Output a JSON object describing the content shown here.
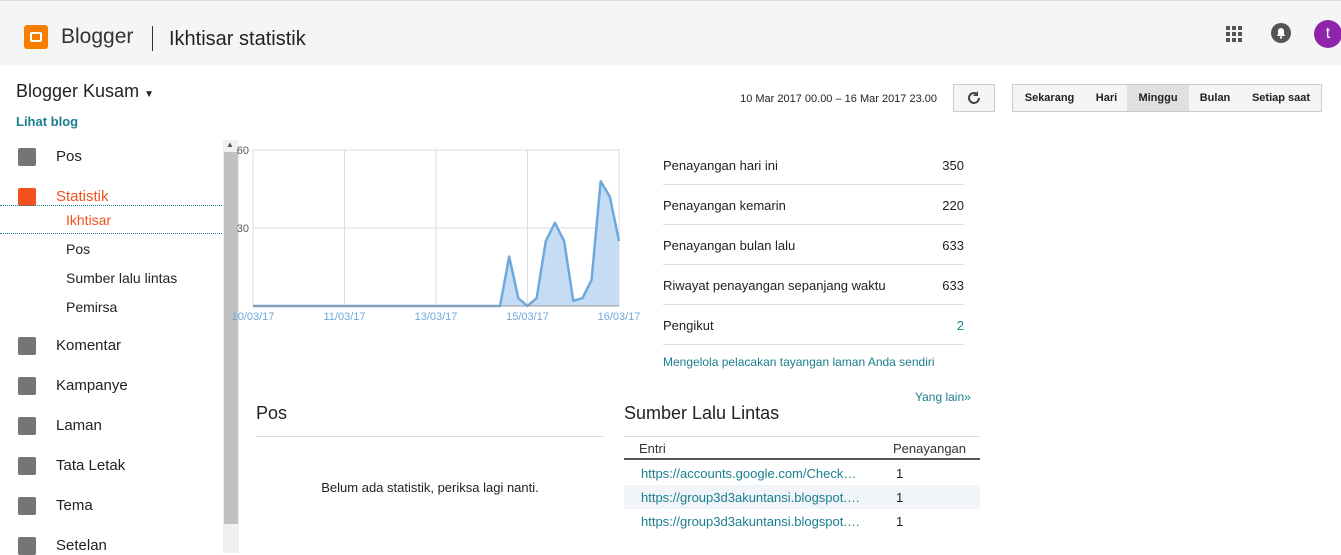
{
  "header": {
    "brand": "Blogger",
    "title": "Ikhtisar statistik",
    "avatar": "t"
  },
  "sidebar": {
    "blog_name": "Blogger Kusam",
    "view_blog": "Lihat blog",
    "nav": [
      {
        "label": "Pos"
      },
      {
        "label": "Statistik",
        "active": true,
        "sub": [
          "Ikhtisar",
          "Pos",
          "Sumber lalu lintas",
          "Pemirsa"
        ],
        "active_sub": 0
      },
      {
        "label": "Komentar"
      },
      {
        "label": "Kampanye"
      },
      {
        "label": "Laman"
      },
      {
        "label": "Tata Letak"
      },
      {
        "label": "Tema"
      },
      {
        "label": "Setelan"
      }
    ]
  },
  "toolbar": {
    "date_range": "10 Mar 2017 00.00 – 16 Mar 2017 23.00",
    "ranges": [
      "Sekarang",
      "Hari",
      "Minggu",
      "Bulan",
      "Setiap saat"
    ],
    "active": 2
  },
  "chart_data": {
    "type": "area",
    "x": [
      "10/03/17",
      null,
      null,
      null,
      null,
      null,
      null,
      null,
      null,
      null,
      "11/03/17",
      null,
      null,
      null,
      null,
      null,
      null,
      null,
      null,
      null,
      "13/03/17",
      null,
      null,
      null,
      null,
      null,
      null,
      null,
      null,
      null,
      "15/03/17",
      null,
      null,
      null,
      null,
      null,
      null,
      null,
      null,
      null,
      "16/03/17"
    ],
    "series": [
      {
        "color": "#6fa8dc",
        "fill": "#c6dcf5",
        "values": [
          0,
          0,
          0,
          0,
          0,
          0,
          0,
          0,
          0,
          0,
          0,
          0,
          0,
          0,
          0,
          0,
          0,
          0,
          0,
          0,
          0,
          0,
          0,
          0,
          0,
          0,
          0,
          0,
          19,
          3,
          0,
          3,
          25,
          32,
          25,
          2,
          3,
          10,
          48,
          42,
          25
        ]
      }
    ],
    "ylim": [
      0,
      60
    ],
    "yticks": [
      30,
      60
    ],
    "grid": true
  },
  "stats": {
    "rows": [
      {
        "label": "Penayangan hari ini",
        "value": 350
      },
      {
        "label": "Penayangan kemarin",
        "value": 220
      },
      {
        "label": "Penayangan bulan lalu",
        "value": 633
      },
      {
        "label": "Riwayat penayangan sepanjang waktu",
        "value": 633
      },
      {
        "label": "Pengikut",
        "value": 2,
        "link": true
      }
    ],
    "link": "Mengelola pelacakan tayangan laman Anda sendiri"
  },
  "posts": {
    "title": "Pos",
    "empty": "Belum ada statistik, periksa lagi nanti."
  },
  "traffic": {
    "more": "Yang lain»",
    "title": "Sumber Lalu Lintas",
    "columns": [
      "Entri",
      "Penayangan"
    ],
    "rows": [
      [
        "https://accounts.google.com/Check…",
        1
      ],
      [
        "https://group3d3akuntansi.blogspot.…",
        1
      ],
      [
        "https://group3d3akuntansi.blogspot.…",
        1
      ]
    ]
  }
}
